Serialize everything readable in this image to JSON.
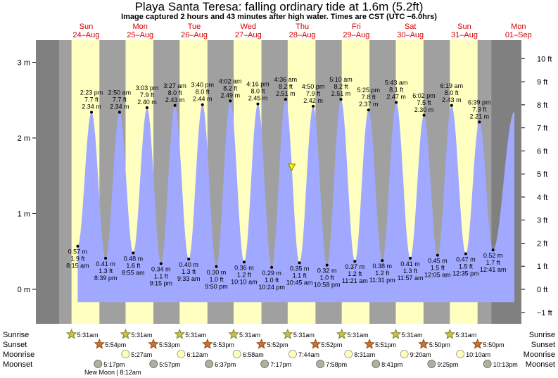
{
  "chart_data": {
    "type": "area",
    "title": "Playa Santa Teresa: falling  ordinary tide at 1.6m (5.2ft)",
    "subtitle": "Image captured 2 hours and 43 minutes after high water. Times are CST (UTC −6.0hrs)",
    "days": [
      {
        "dow": "Sun",
        "date": "24–Aug"
      },
      {
        "dow": "Mon",
        "date": "25–Aug"
      },
      {
        "dow": "Tue",
        "date": "26–Aug"
      },
      {
        "dow": "Wed",
        "date": "27–Aug"
      },
      {
        "dow": "Thu",
        "date": "28–Aug"
      },
      {
        "dow": "Fri",
        "date": "29–Aug"
      },
      {
        "dow": "Sat",
        "date": "30–Aug"
      },
      {
        "dow": "Sun",
        "date": "31–Aug"
      },
      {
        "dow": "Mon",
        "date": "01–Sep"
      }
    ],
    "y_left": {
      "unit": "m",
      "ticks": [
        {
          "v": 0,
          "label": "0 m"
        },
        {
          "v": 1,
          "label": "1 m"
        },
        {
          "v": 2,
          "label": "2 m"
        },
        {
          "v": 3,
          "label": "3 m"
        }
      ],
      "range": [
        -0.33,
        3.3
      ]
    },
    "y_right": {
      "unit": "ft",
      "ticks": [
        {
          "v": -1,
          "label": "−1 ft"
        },
        {
          "v": 0,
          "label": "0 ft"
        },
        {
          "v": 1,
          "label": "1 ft"
        },
        {
          "v": 2,
          "label": "2 ft"
        },
        {
          "v": 3,
          "label": "3 ft"
        },
        {
          "v": 4,
          "label": "4 ft"
        },
        {
          "v": 5,
          "label": "5 ft"
        },
        {
          "v": 6,
          "label": "6 ft"
        },
        {
          "v": 7,
          "label": "7 ft"
        },
        {
          "v": 8,
          "label": "8 ft"
        },
        {
          "v": 9,
          "label": "9 ft"
        },
        {
          "v": 10,
          "label": "10 ft"
        }
      ]
    },
    "tides": [
      {
        "type": "low",
        "day": 0,
        "hour": 8.25,
        "m": 0.57,
        "time": "8:15 am",
        "ft": "1.9 ft",
        "mlabel": "0.57 m"
      },
      {
        "type": "high",
        "day": 0,
        "hour": 14.383,
        "m": 2.34,
        "time": "2:23 pm",
        "ft": "7.7 ft",
        "mlabel": "2.34 m"
      },
      {
        "type": "low",
        "day": 0,
        "hour": 20.65,
        "m": 0.41,
        "time": "8:39 pm",
        "ft": "1.3 ft",
        "mlabel": "0.41 m"
      },
      {
        "type": "high",
        "day": 1,
        "hour": 2.833,
        "m": 2.34,
        "time": "2:50 am",
        "ft": "7.7 ft",
        "mlabel": "2.34 m"
      },
      {
        "type": "low",
        "day": 1,
        "hour": 8.917,
        "m": 0.48,
        "time": "8:55 am",
        "ft": "1.6 ft",
        "mlabel": "0.48 m"
      },
      {
        "type": "high",
        "day": 1,
        "hour": 15.05,
        "m": 2.4,
        "time": "3:03 pm",
        "ft": "7.9 ft",
        "mlabel": "2.40 m"
      },
      {
        "type": "low",
        "day": 1,
        "hour": 21.25,
        "m": 0.34,
        "time": "9:15 pm",
        "ft": "1.1 ft",
        "mlabel": "0.34 m"
      },
      {
        "type": "high",
        "day": 2,
        "hour": 3.45,
        "m": 2.43,
        "time": "3:27 am",
        "ft": "8.0 ft",
        "mlabel": "2.43 m"
      },
      {
        "type": "low",
        "day": 2,
        "hour": 9.55,
        "m": 0.4,
        "time": "9:33 am",
        "ft": "1.3 ft",
        "mlabel": "0.40 m"
      },
      {
        "type": "high",
        "day": 2,
        "hour": 15.667,
        "m": 2.44,
        "time": "3:40 pm",
        "ft": "8.0 ft",
        "mlabel": "2.44 m"
      },
      {
        "type": "low",
        "day": 2,
        "hour": 21.833,
        "m": 0.3,
        "time": "9:50 pm",
        "ft": "1.0 ft",
        "mlabel": "0.30 m"
      },
      {
        "type": "high",
        "day": 3,
        "hour": 4.033,
        "m": 2.49,
        "time": "4:02 am",
        "ft": "8.2 ft",
        "mlabel": "2.49 m"
      },
      {
        "type": "low",
        "day": 3,
        "hour": 10.167,
        "m": 0.36,
        "time": "10:10 am",
        "ft": "1.2 ft",
        "mlabel": "0.36 m"
      },
      {
        "type": "high",
        "day": 3,
        "hour": 16.267,
        "m": 2.45,
        "time": "4:16 pm",
        "ft": "8.0 ft",
        "mlabel": "2.45 m"
      },
      {
        "type": "low",
        "day": 3,
        "hour": 22.4,
        "m": 0.29,
        "time": "10:24 pm",
        "ft": "1.0 ft",
        "mlabel": "0.29 m"
      },
      {
        "type": "high",
        "day": 4,
        "hour": 4.6,
        "m": 2.51,
        "time": "4:36 am",
        "ft": "8.2 ft",
        "mlabel": "2.51 m"
      },
      {
        "type": "low",
        "day": 4,
        "hour": 10.75,
        "m": 0.35,
        "time": "10:45 am",
        "ft": "1.1 ft",
        "mlabel": "0.35 m"
      },
      {
        "type": "high",
        "day": 4,
        "hour": 16.833,
        "m": 2.42,
        "time": "4:50 pm",
        "ft": "7.9 ft",
        "mlabel": "2.42 m"
      },
      {
        "type": "low",
        "day": 4,
        "hour": 22.967,
        "m": 0.32,
        "time": "10:58 pm",
        "ft": "1.0 ft",
        "mlabel": "0.32 m"
      },
      {
        "type": "high",
        "day": 5,
        "hour": 5.167,
        "m": 2.51,
        "time": "5:10 am",
        "ft": "8.2 ft",
        "mlabel": "2.51 m"
      },
      {
        "type": "low",
        "day": 5,
        "hour": 11.35,
        "m": 0.37,
        "time": "11:21 am",
        "ft": "1.2 ft",
        "mlabel": "0.37 m"
      },
      {
        "type": "high",
        "day": 5,
        "hour": 17.417,
        "m": 2.37,
        "time": "5:25 pm",
        "ft": "7.8 ft",
        "mlabel": "2.37 m"
      },
      {
        "type": "low",
        "day": 5,
        "hour": 23.517,
        "m": 0.38,
        "time": "11:31 pm",
        "ft": "1.2 ft",
        "mlabel": "0.38 m"
      },
      {
        "type": "high",
        "day": 6,
        "hour": 5.717,
        "m": 2.47,
        "time": "5:43 am",
        "ft": "8.1 ft",
        "mlabel": "2.47 m"
      },
      {
        "type": "low",
        "day": 6,
        "hour": 11.95,
        "m": 0.41,
        "time": "11:57 am",
        "ft": "1.3 ft",
        "mlabel": "0.41 m"
      },
      {
        "type": "high",
        "day": 6,
        "hour": 18.033,
        "m": 2.3,
        "time": "6:02 pm",
        "ft": "7.5 ft",
        "mlabel": "2.30 m"
      },
      {
        "type": "low",
        "day": 7,
        "hour": 0.083,
        "m": 0.45,
        "time": "12:05 am",
        "ft": "1.5 ft",
        "mlabel": "0.45 m"
      },
      {
        "type": "high",
        "day": 7,
        "hour": 6.317,
        "m": 2.43,
        "time": "6:19 am",
        "ft": "8.0 ft",
        "mlabel": "2.43 m"
      },
      {
        "type": "low",
        "day": 7,
        "hour": 12.583,
        "m": 0.47,
        "time": "12:35 pm",
        "ft": "1.5 ft",
        "mlabel": "0.47 m"
      },
      {
        "type": "high",
        "day": 7,
        "hour": 18.65,
        "m": 2.21,
        "time": "6:39 pm",
        "ft": "7.3 ft",
        "mlabel": "2.21 m"
      },
      {
        "type": "low",
        "day": 8,
        "hour": 0.683,
        "m": 0.52,
        "time": "12:41 am",
        "ft": "1.7 ft",
        "mlabel": "0.52 m"
      }
    ],
    "current": {
      "day": 4,
      "hour": 7.317,
      "m": 1.6
    },
    "sun_moon": {
      "row_labels": {
        "sunrise": "Sunrise",
        "sunset": "Sunset",
        "moonrise": "Moonrise",
        "moonset": "Moonset"
      },
      "sunrise": [
        {
          "day": 0,
          "hour": 5.517,
          "label": "5:31am"
        },
        {
          "day": 1,
          "hour": 5.517,
          "label": "5:31am"
        },
        {
          "day": 2,
          "hour": 5.517,
          "label": "5:31am"
        },
        {
          "day": 3,
          "hour": 5.517,
          "label": "5:31am"
        },
        {
          "day": 4,
          "hour": 5.517,
          "label": "5:31am"
        },
        {
          "day": 5,
          "hour": 5.517,
          "label": "5:31am"
        },
        {
          "day": 6,
          "hour": 5.517,
          "label": "5:31am"
        },
        {
          "day": 7,
          "hour": 5.517,
          "label": "5:31am"
        }
      ],
      "sunset": [
        {
          "day": 0,
          "hour": 17.9,
          "label": "5:54pm"
        },
        {
          "day": 1,
          "hour": 17.883,
          "label": "5:53pm"
        },
        {
          "day": 2,
          "hour": 17.883,
          "label": "5:53pm"
        },
        {
          "day": 3,
          "hour": 17.867,
          "label": "5:52pm"
        },
        {
          "day": 4,
          "hour": 17.867,
          "label": "5:52pm"
        },
        {
          "day": 5,
          "hour": 17.85,
          "label": "5:51pm"
        },
        {
          "day": 6,
          "hour": 17.833,
          "label": "5:50pm"
        },
        {
          "day": 7,
          "hour": 17.833,
          "label": "5:50pm"
        }
      ],
      "moonrise": [
        {
          "day": 1,
          "hour": 5.45,
          "label": "5:27am"
        },
        {
          "day": 2,
          "hour": 6.2,
          "label": "6:12am"
        },
        {
          "day": 3,
          "hour": 6.967,
          "label": "6:58am"
        },
        {
          "day": 4,
          "hour": 7.733,
          "label": "7:44am"
        },
        {
          "day": 5,
          "hour": 8.517,
          "label": "8:31am"
        },
        {
          "day": 6,
          "hour": 9.333,
          "label": "9:20am"
        },
        {
          "day": 7,
          "hour": 10.167,
          "label": "10:10am"
        }
      ],
      "moonset": [
        {
          "day": 0,
          "hour": 17.283,
          "label": "5:17pm"
        },
        {
          "day": 1,
          "hour": 17.95,
          "label": "5:57pm"
        },
        {
          "day": 2,
          "hour": 18.617,
          "label": "6:37pm"
        },
        {
          "day": 3,
          "hour": 19.283,
          "label": "7:17pm"
        },
        {
          "day": 4,
          "hour": 19.967,
          "label": "7:58pm"
        },
        {
          "day": 5,
          "hour": 20.683,
          "label": "8:41pm"
        },
        {
          "day": 6,
          "hour": 21.417,
          "label": "9:25pm"
        },
        {
          "day": 7,
          "hour": 22.217,
          "label": "10:13pm"
        }
      ],
      "note": "New Moon | 8:12am"
    },
    "colors": {
      "night": "#a0a0a0",
      "day": "#ffffc0",
      "tide": "#a0a8ff",
      "outer": "#808080",
      "day_label": "#d40000"
    }
  }
}
